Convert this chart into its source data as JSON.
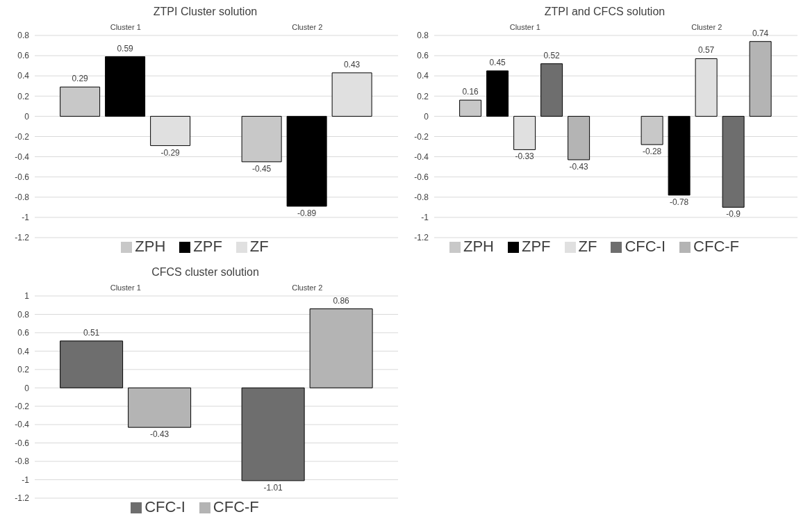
{
  "chart_data": [
    {
      "type": "bar",
      "title": "ZTPI Cluster solution",
      "categories": [
        "Cluster 1",
        "Cluster 2"
      ],
      "series": [
        {
          "name": "ZPH",
          "color": "#c8c8c8",
          "values": [
            0.29,
            -0.45
          ]
        },
        {
          "name": "ZPF",
          "color": "#000000",
          "values": [
            0.59,
            -0.89
          ]
        },
        {
          "name": "ZF",
          "color": "#e0e0e0",
          "values": [
            -0.29,
            0.43
          ]
        }
      ],
      "ylim": [
        -1.2,
        0.8
      ],
      "yticks": [
        -1.2,
        -1,
        -0.8,
        -0.6,
        -0.4,
        -0.2,
        0,
        0.2,
        0.4,
        0.6,
        0.8
      ],
      "grid": "y",
      "legend": "bottom",
      "data_labels": true
    },
    {
      "type": "bar",
      "title": "ZTPI and CFCS solution",
      "categories": [
        "Cluster 1",
        "Cluster 2"
      ],
      "series": [
        {
          "name": "ZPH",
          "color": "#c8c8c8",
          "values": [
            0.16,
            -0.28
          ]
        },
        {
          "name": "ZPF",
          "color": "#000000",
          "values": [
            0.45,
            -0.78
          ]
        },
        {
          "name": "ZF",
          "color": "#e0e0e0",
          "values": [
            -0.33,
            0.57
          ]
        },
        {
          "name": "CFC-I",
          "color": "#6e6e6e",
          "values": [
            0.52,
            -0.9
          ]
        },
        {
          "name": "CFC-F",
          "color": "#b4b4b4",
          "values": [
            -0.43,
            0.74
          ]
        }
      ],
      "ylim": [
        -1.2,
        0.8
      ],
      "yticks": [
        -1.2,
        -1,
        -0.8,
        -0.6,
        -0.4,
        -0.2,
        0,
        0.2,
        0.4,
        0.6,
        0.8
      ],
      "grid": "y",
      "legend": "bottom",
      "data_labels": true
    },
    {
      "type": "bar",
      "title": "CFCS cluster solution",
      "categories": [
        "Cluster 1",
        "Cluster 2"
      ],
      "series": [
        {
          "name": "CFC-I",
          "color": "#6e6e6e",
          "values": [
            0.51,
            -1.01
          ]
        },
        {
          "name": "CFC-F",
          "color": "#b4b4b4",
          "values": [
            -0.43,
            0.86
          ]
        }
      ],
      "ylim": [
        -1.2,
        1
      ],
      "yticks": [
        -1.2,
        -1,
        -0.8,
        -0.6,
        -0.4,
        -0.2,
        0,
        0.2,
        0.4,
        0.6,
        0.8,
        1
      ],
      "grid": "y",
      "legend": "bottom",
      "data_labels": true
    }
  ]
}
